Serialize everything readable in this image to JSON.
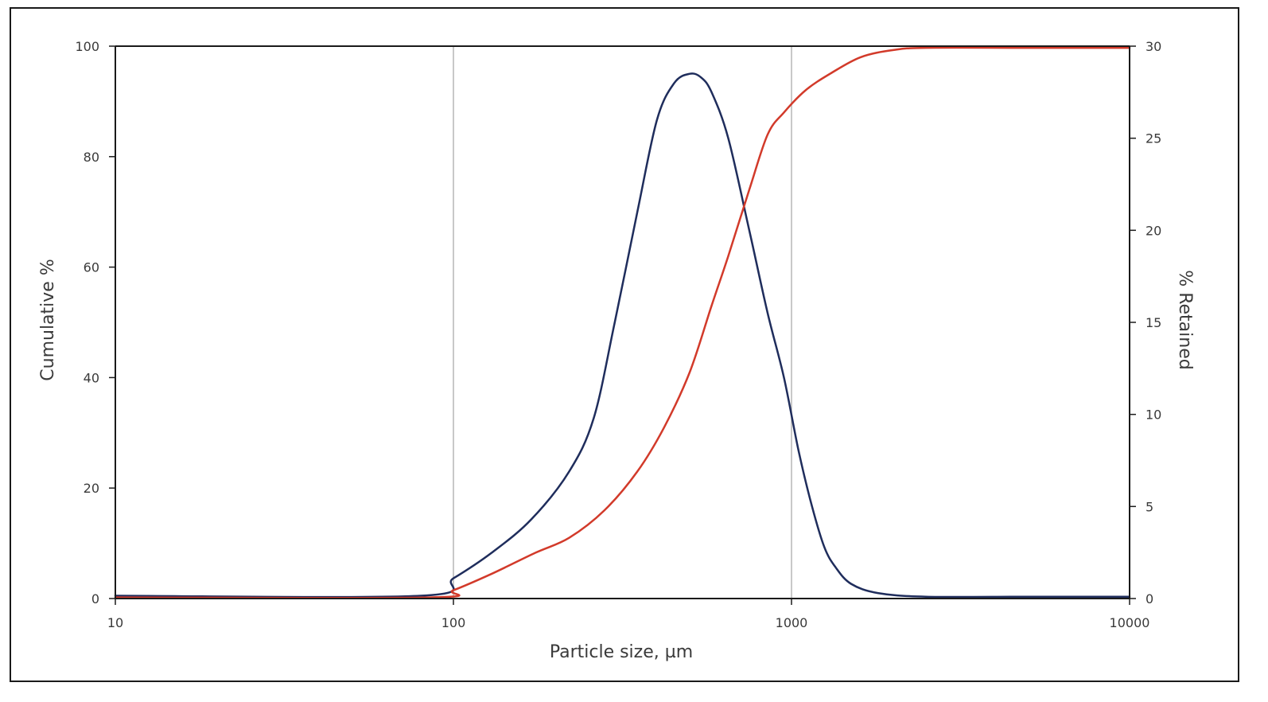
{
  "chart_data": {
    "type": "line",
    "xlabel": "Particle size, µm",
    "ylabel": "Cumulative %",
    "y2label": "% Retained",
    "xscale": "log",
    "xlim": [
      10,
      10000
    ],
    "ylim": [
      0,
      100
    ],
    "y2lim": [
      0,
      30
    ],
    "x_ticks": [
      "10",
      "100",
      "1000",
      "10000"
    ],
    "y_ticks": [
      "0",
      "20",
      "40",
      "60",
      "80",
      "100"
    ],
    "y2_ticks": [
      "0",
      "5",
      "10",
      "15",
      "20",
      "25",
      "30"
    ],
    "grid": "vertical at 100 and 1000",
    "series": [
      {
        "axis": "y2",
        "color": "#1f2d5c",
        "x": [
          10,
          80,
          100,
          130,
          170,
          220,
          260,
          300,
          350,
          400,
          450,
          500,
          540,
          580,
          650,
          750,
          850,
          950,
          1050,
          1150,
          1250,
          1350,
          1500,
          1800,
          2500,
          5000,
          10000
        ],
        "y": [
          0.15,
          0.15,
          1.1,
          2.5,
          4.3,
          6.9,
          9.8,
          15.0,
          21.0,
          26.0,
          28.0,
          28.5,
          28.3,
          27.5,
          25.0,
          20.0,
          15.5,
          12.0,
          8.0,
          5.0,
          2.8,
          1.7,
          0.8,
          0.3,
          0.1,
          0.1,
          0.1
        ]
      },
      {
        "axis": "y",
        "color": "#d23a2a",
        "x": [
          10,
          85,
          100,
          130,
          175,
          220,
          280,
          350,
          420,
          500,
          580,
          650,
          750,
          850,
          950,
          1100,
          1300,
          1600,
          2000,
          2500,
          5000,
          10000
        ],
        "y": [
          0.2,
          0.2,
          1.5,
          4.5,
          8.3,
          11.0,
          16.0,
          23.0,
          31.0,
          41.0,
          53.0,
          62.0,
          74.0,
          84.0,
          88.0,
          92.0,
          95.0,
          98.0,
          99.3,
          99.7,
          99.7,
          99.7
        ]
      }
    ]
  }
}
